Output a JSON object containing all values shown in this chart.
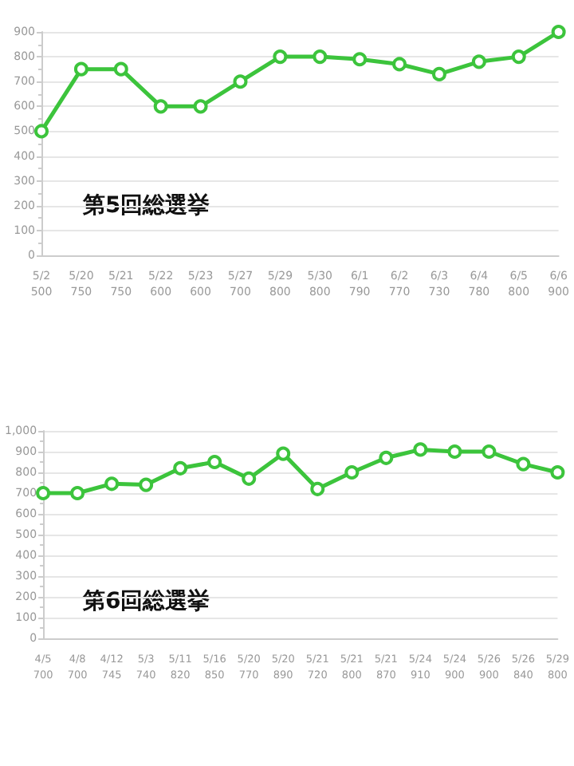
{
  "chart_data": [
    {
      "type": "line",
      "title": "第5回総選挙",
      "categories": [
        "5/2\n500",
        "5/20\n750",
        "5/21\n750",
        "5/22\n600",
        "5/23\n600",
        "5/27\n700",
        "5/29\n800",
        "5/30\n800",
        "6/1\n790",
        "6/2\n770",
        "6/3\n730",
        "6/4\n780",
        "6/5\n800",
        "6/6\n900"
      ],
      "series": [
        {
          "color": "#3cc43c",
          "values": [
            500,
            750,
            750,
            600,
            600,
            700,
            800,
            800,
            790,
            770,
            730,
            780,
            800,
            900
          ]
        }
      ],
      "ylim": [
        0,
        900
      ],
      "yticks": [
        0,
        100,
        200,
        300,
        400,
        500,
        600,
        700,
        800,
        900
      ],
      "grid": "y",
      "marker": "circle",
      "line_style": "solid"
    },
    {
      "type": "line",
      "title": "第6回総選挙",
      "categories": [
        "4/5\n700",
        "4/8\n700",
        "4/12\n745",
        "5/3\n740",
        "5/11\n820",
        "5/16\n850",
        "5/20\n770",
        "5/20\n890",
        "5/21\n720",
        "5/21\n800",
        "5/21\n870",
        "5/24\n910",
        "5/24\n900",
        "5/26\n900",
        "5/26\n840",
        "5/29\n800"
      ],
      "series": [
        {
          "color": "#3cc43c",
          "values": [
            700,
            700,
            745,
            740,
            820,
            850,
            770,
            890,
            720,
            800,
            870,
            910,
            900,
            900,
            840,
            800
          ]
        }
      ],
      "ylim": [
        0,
        1000
      ],
      "yticks": [
        0,
        100,
        200,
        300,
        400,
        500,
        600,
        700,
        800,
        900,
        {
          "value": 1000,
          "label": "1,000"
        }
      ],
      "grid": "y",
      "marker": "circle",
      "line_style": "solid"
    }
  ]
}
